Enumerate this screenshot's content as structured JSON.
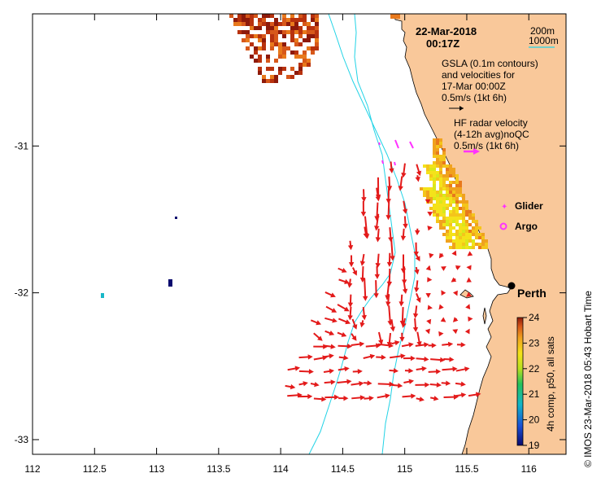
{
  "map": {
    "date": "22-Mar-2018",
    "time": "00:17Z",
    "isobath_200": "200m",
    "isobath_1000": "1000m",
    "gsla_line1": "GSLA (0.1m contours)",
    "gsla_line2": "and velocities for",
    "gsla_line3": "17-Mar 00:00Z",
    "gsla_scale": "0.5m/s (1kt 6h)",
    "hf_line1": "HF radar velocity",
    "hf_line2": "(4-12h avg)noQC",
    "hf_scale": "0.5m/s (1kt 6h)",
    "glider_label": "Glider",
    "argo_label": "Argo",
    "city": "Perth",
    "colorbar_label": "4h comp, p50, all sats",
    "credit": "© IMOS 23-Mar-2018 05:43 Hobart Time",
    "x_ticks": [
      "112",
      "112.5",
      "113",
      "113.5",
      "114",
      "114.5",
      "115",
      "115.5",
      "116"
    ],
    "y_ticks": [
      "-31",
      "-32",
      "-33"
    ],
    "colorbar_ticks": [
      "24",
      "23",
      "22",
      "21",
      "20",
      "19"
    ],
    "colors": {
      "land": "#f9c89a",
      "isobath": "#22d3e6",
      "hf_arrow": "#e31a1a",
      "glider": "#ff33ff",
      "argo": "#ff33ff",
      "gsla_arrow": "#000000"
    }
  },
  "chart_data": {
    "type": "map",
    "x_axis": {
      "label": "",
      "range": [
        112,
        116.3
      ],
      "ticks": [
        112,
        112.5,
        113,
        113.5,
        114,
        114.5,
        115,
        115.5,
        116
      ]
    },
    "y_axis": {
      "label": "",
      "range": [
        -33.1,
        -30.1
      ],
      "ticks": [
        -31,
        -32,
        -33
      ]
    },
    "colorbar": {
      "range": [
        19,
        24
      ],
      "ticks": [
        19,
        20,
        21,
        22,
        23,
        24
      ],
      "label": "4h comp, p50, all sats"
    },
    "city": {
      "name": "Perth",
      "lon": 115.86,
      "lat": -31.95
    },
    "sst_patches": [
      {
        "region": "north",
        "lon_range": [
          113.5,
          114.3
        ],
        "lat_range": [
          -30.55,
          -30.1
        ],
        "value_range": [
          23,
          24
        ]
      },
      {
        "region": "coastal",
        "lon_range": [
          115.05,
          115.7
        ],
        "lat_range": [
          -31.7,
          -30.95
        ],
        "value_range": [
          22.5,
          24
        ]
      }
    ],
    "isolated_pixels": [
      {
        "lon": 112.57,
        "lat": -32.01,
        "value": 20.5
      },
      {
        "lon": 113.12,
        "lat": -31.93,
        "value": 19.2
      },
      {
        "lon": 113.17,
        "lat": -31.48,
        "value": 19
      }
    ],
    "hf_radar_field": {
      "lon_range": [
        114.05,
        115.6
      ],
      "lat_range": [
        -32.75,
        -31.1
      ],
      "dominant_direction": "southward"
    }
  }
}
